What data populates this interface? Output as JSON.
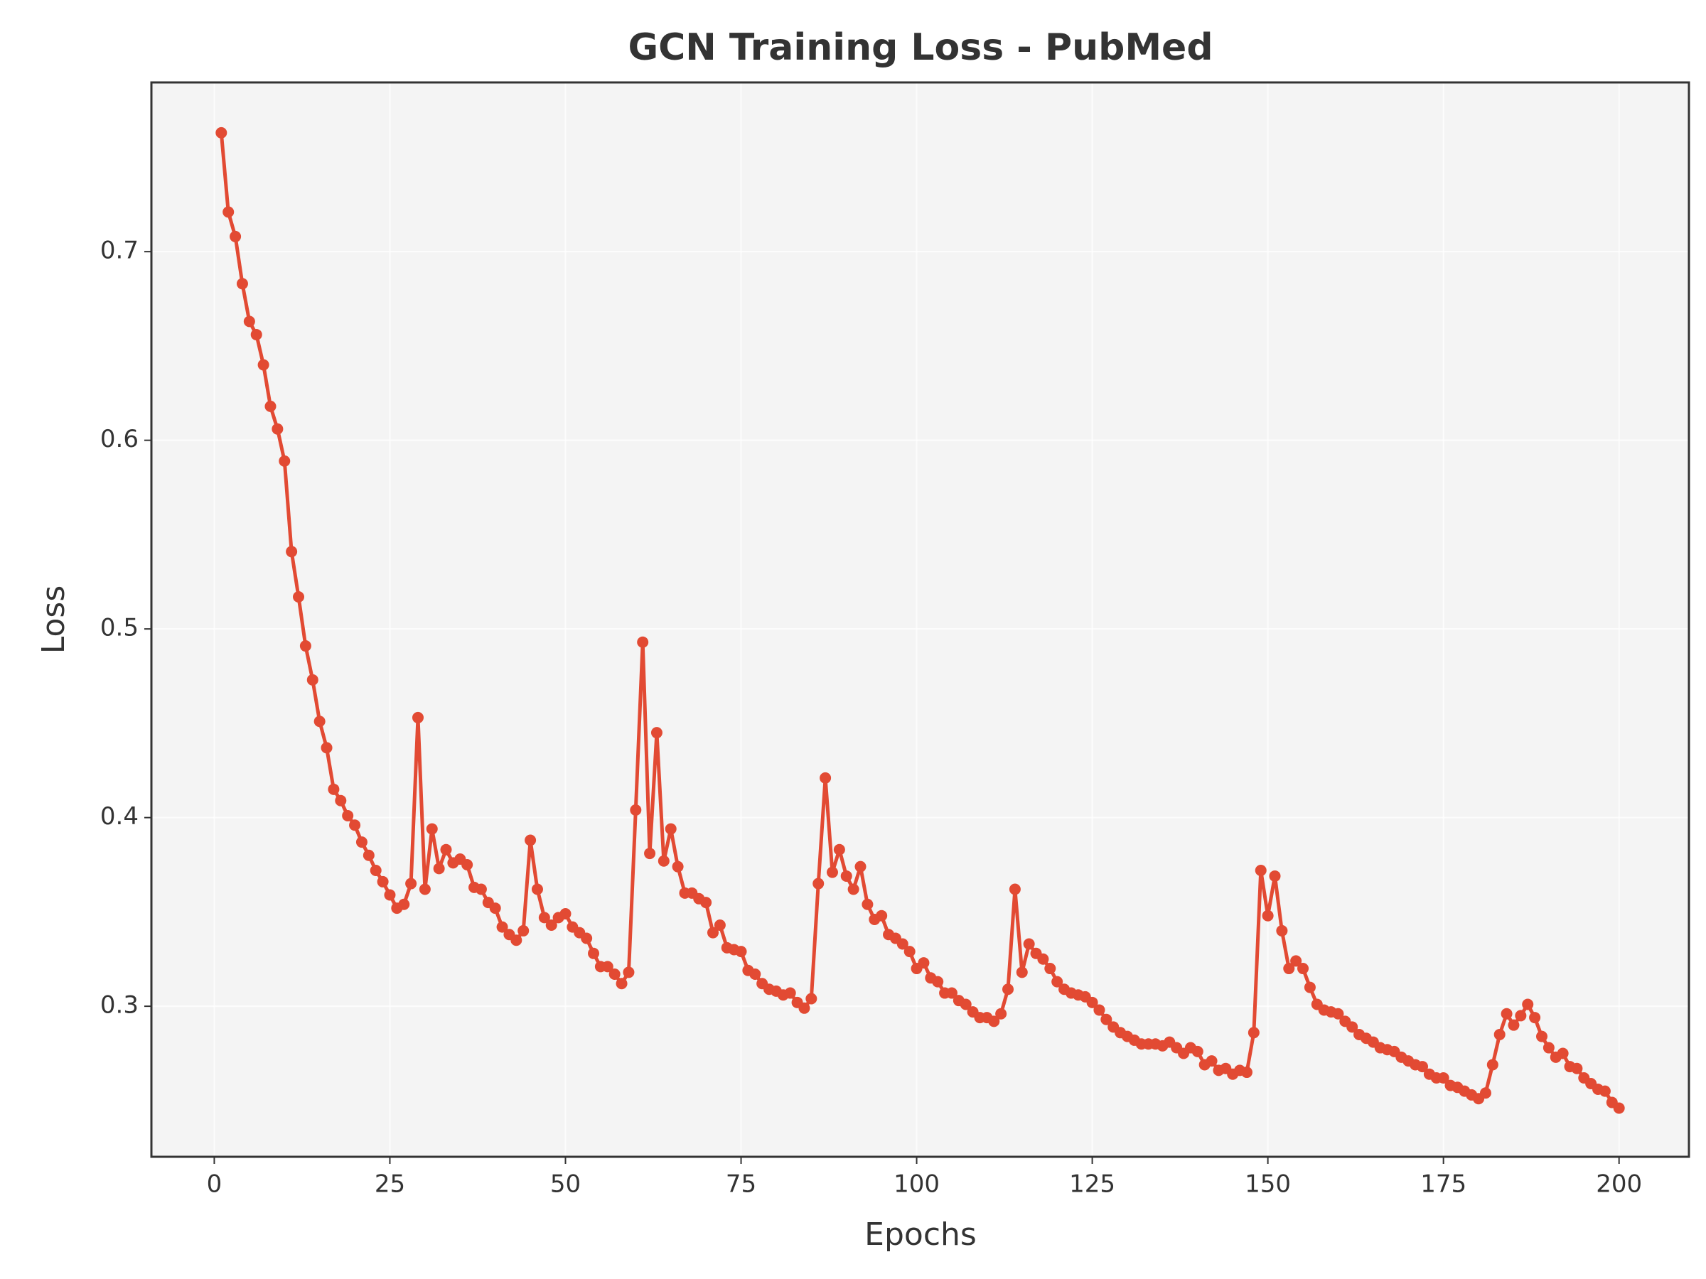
{
  "chart_data": {
    "type": "line",
    "title": "GCN Training Loss - PubMed",
    "x_label": "Epochs",
    "y_label": "Loss",
    "x": [
      1,
      2,
      3,
      4,
      5,
      6,
      7,
      8,
      9,
      10,
      11,
      12,
      13,
      14,
      15,
      16,
      17,
      18,
      19,
      20,
      21,
      22,
      23,
      24,
      25,
      26,
      27,
      28,
      29,
      30,
      31,
      32,
      33,
      34,
      35,
      36,
      37,
      38,
      39,
      40,
      41,
      42,
      43,
      44,
      45,
      46,
      47,
      48,
      49,
      50,
      51,
      52,
      53,
      54,
      55,
      56,
      57,
      58,
      59,
      60,
      61,
      62,
      63,
      64,
      65,
      66,
      67,
      68,
      69,
      70,
      71,
      72,
      73,
      74,
      75,
      76,
      77,
      78,
      79,
      80,
      81,
      82,
      83,
      84,
      85,
      86,
      87,
      88,
      89,
      90,
      91,
      92,
      93,
      94,
      95,
      96,
      97,
      98,
      99,
      100,
      101,
      102,
      103,
      104,
      105,
      106,
      107,
      108,
      109,
      110,
      111,
      112,
      113,
      114,
      115,
      116,
      117,
      118,
      119,
      120,
      121,
      122,
      123,
      124,
      125,
      126,
      127,
      128,
      129,
      130,
      131,
      132,
      133,
      134,
      135,
      136,
      137,
      138,
      139,
      140,
      141,
      142,
      143,
      144,
      145,
      146,
      147,
      148,
      149,
      150,
      151,
      152,
      153,
      154,
      155,
      156,
      157,
      158,
      159,
      160,
      161,
      162,
      163,
      164,
      165,
      166,
      167,
      168,
      169,
      170,
      171,
      172,
      173,
      174,
      175,
      176,
      177,
      178,
      179,
      180,
      181,
      182,
      183,
      184,
      185,
      186,
      187,
      188,
      189,
      190,
      191,
      192,
      193,
      194,
      195,
      196,
      197,
      198,
      199,
      200
    ],
    "series": [
      {
        "name": "Training Loss",
        "color": "#e24a33",
        "values": [
          0.763,
          0.721,
          0.708,
          0.683,
          0.663,
          0.656,
          0.64,
          0.618,
          0.606,
          0.589,
          0.541,
          0.517,
          0.491,
          0.473,
          0.451,
          0.437,
          0.415,
          0.409,
          0.401,
          0.396,
          0.387,
          0.38,
          0.372,
          0.366,
          0.359,
          0.352,
          0.354,
          0.365,
          0.453,
          0.362,
          0.394,
          0.373,
          0.383,
          0.376,
          0.378,
          0.375,
          0.363,
          0.362,
          0.355,
          0.352,
          0.342,
          0.338,
          0.335,
          0.34,
          0.388,
          0.362,
          0.347,
          0.343,
          0.347,
          0.349,
          0.342,
          0.339,
          0.336,
          0.328,
          0.321,
          0.321,
          0.317,
          0.312,
          0.318,
          0.404,
          0.493,
          0.381,
          0.445,
          0.377,
          0.394,
          0.374,
          0.36,
          0.36,
          0.357,
          0.355,
          0.339,
          0.343,
          0.331,
          0.33,
          0.329,
          0.319,
          0.317,
          0.312,
          0.309,
          0.308,
          0.306,
          0.307,
          0.302,
          0.299,
          0.304,
          0.365,
          0.421,
          0.371,
          0.383,
          0.369,
          0.362,
          0.374,
          0.354,
          0.346,
          0.348,
          0.338,
          0.336,
          0.333,
          0.329,
          0.32,
          0.323,
          0.315,
          0.313,
          0.307,
          0.307,
          0.303,
          0.301,
          0.297,
          0.294,
          0.294,
          0.292,
          0.296,
          0.309,
          0.362,
          0.318,
          0.333,
          0.328,
          0.325,
          0.32,
          0.313,
          0.309,
          0.307,
          0.306,
          0.305,
          0.302,
          0.298,
          0.293,
          0.289,
          0.286,
          0.284,
          0.282,
          0.28,
          0.28,
          0.28,
          0.279,
          0.281,
          0.278,
          0.275,
          0.278,
          0.276,
          0.269,
          0.271,
          0.266,
          0.267,
          0.264,
          0.266,
          0.265,
          0.286,
          0.372,
          0.348,
          0.369,
          0.34,
          0.32,
          0.324,
          0.32,
          0.31,
          0.301,
          0.298,
          0.297,
          0.296,
          0.292,
          0.289,
          0.285,
          0.283,
          0.281,
          0.278,
          0.277,
          0.276,
          0.273,
          0.271,
          0.269,
          0.268,
          0.264,
          0.262,
          0.262,
          0.258,
          0.257,
          0.255,
          0.253,
          0.251,
          0.254,
          0.269,
          0.285,
          0.296,
          0.29,
          0.295,
          0.301,
          0.294,
          0.284,
          0.278,
          0.273,
          0.275,
          0.268,
          0.267,
          0.262,
          0.259,
          0.256,
          0.255,
          0.249,
          0.246
        ]
      }
    ],
    "xlim": [
      -8.95,
      209.95
    ],
    "ylim": [
      0.2202,
      0.7897
    ],
    "xticks": [
      0,
      25,
      50,
      75,
      100,
      125,
      150,
      175,
      200
    ],
    "yticks": [
      0.3,
      0.4,
      0.5,
      0.6,
      0.7
    ],
    "grid": true
  }
}
